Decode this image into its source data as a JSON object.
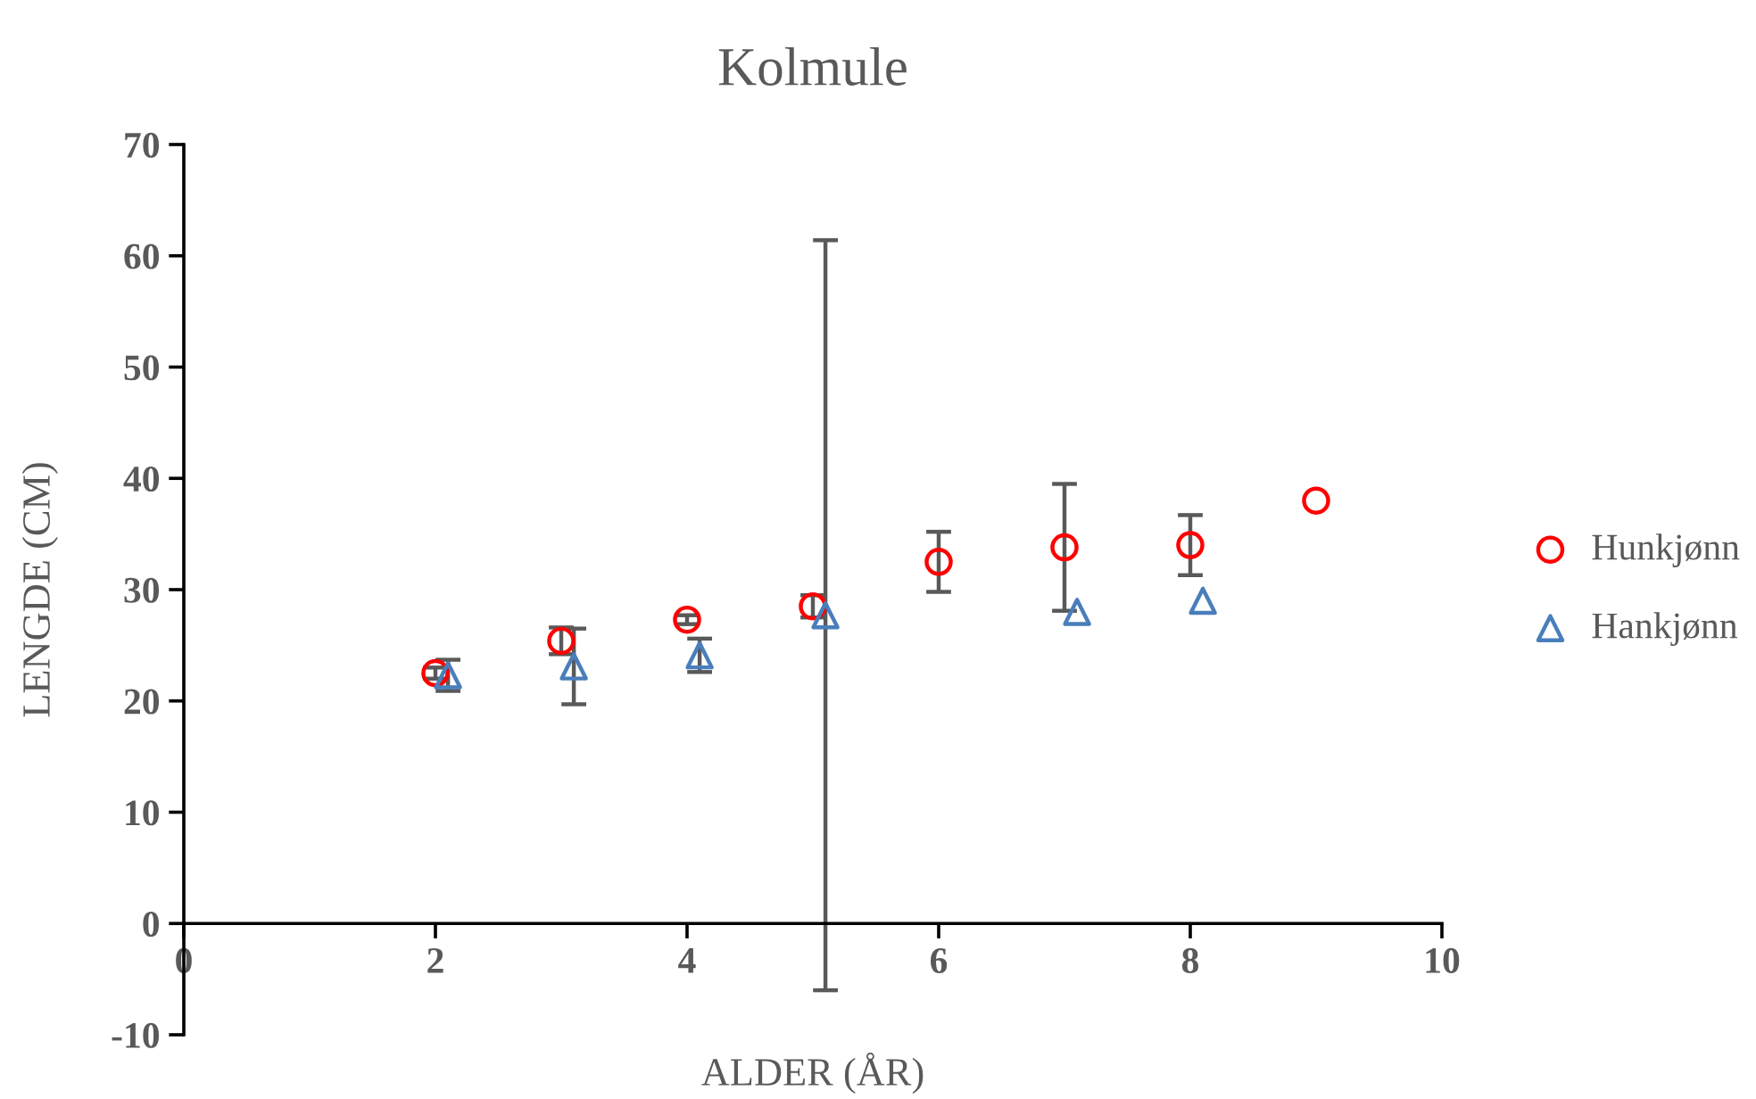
{
  "chart_data": {
    "type": "scatter",
    "title": "Kolmule",
    "xlabel": "ALDER (ÅR)",
    "ylabel": "LENGDE (CM)",
    "xlim": [
      0,
      10
    ],
    "xticks": [
      0,
      2,
      4,
      6,
      8,
      10
    ],
    "ylim": [
      -10,
      70
    ],
    "yticks": [
      -10,
      0,
      10,
      20,
      30,
      40,
      50,
      60,
      70
    ],
    "grid": false,
    "legend": "right",
    "series": [
      {
        "name": "Hunkjønn",
        "color": "#ff0000",
        "marker": "circle",
        "x": [
          2,
          3,
          4,
          5,
          6,
          7,
          8,
          9
        ],
        "values": [
          22.5,
          25.4,
          27.3,
          28.5,
          32.5,
          33.8,
          34.0,
          38.0
        ],
        "errors": [
          0.5,
          1.2,
          0.4,
          1.0,
          2.7,
          5.7,
          2.7,
          null
        ]
      },
      {
        "name": "Hankjønn",
        "color": "#4a7ebb",
        "marker": "triangle",
        "x": [
          2.1,
          3.1,
          4.1,
          5.1,
          7.1,
          8.1
        ],
        "values": [
          22.3,
          23.1,
          24.1,
          27.7,
          28.0,
          29.0
        ],
        "errors": [
          1.4,
          3.4,
          1.5,
          33.7,
          null,
          null
        ]
      }
    ]
  }
}
